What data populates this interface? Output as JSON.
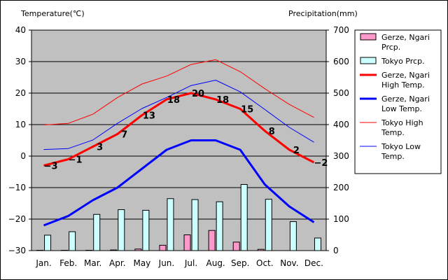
{
  "chart_data": {
    "type": "bar",
    "title": "",
    "y_left_label": "Temperature(℃)",
    "y_right_label": "Precipitation(mm)",
    "categories": [
      "Jan.",
      "Feb.",
      "Mar.",
      "Apr.",
      "May",
      "Jun.",
      "Jul.",
      "Aug.",
      "Sep.",
      "Oct.",
      "Nov.",
      "Dec."
    ],
    "y_left_lim": [
      -30,
      40
    ],
    "y_left_ticks": [
      40,
      30,
      20,
      10,
      0,
      -10,
      -20,
      -30
    ],
    "y_right_lim": [
      0,
      700
    ],
    "y_right_ticks": [
      700,
      600,
      500,
      400,
      300,
      200,
      100,
      0
    ],
    "grid": true,
    "plot_background": "#c0c0c0",
    "legend_position": "right",
    "bar_series": [
      {
        "name": "Gerze, Ngari Prcp.",
        "color": "#ff99cc",
        "values": [
          1,
          1,
          1,
          2,
          5,
          17,
          50,
          64,
          27,
          4,
          0,
          0
        ]
      },
      {
        "name": "Tokyo Prcp.",
        "color": "#ccffff",
        "values": [
          49,
          60,
          115,
          130,
          128,
          165,
          162,
          155,
          210,
          163,
          92,
          40
        ]
      }
    ],
    "line_series": [
      {
        "name": "Gerze, Ngari High Temp.",
        "color": "#ff0000",
        "width": 3,
        "values": [
          -3,
          -1,
          3,
          7,
          13,
          18,
          20,
          18,
          15,
          8,
          2,
          -2
        ],
        "labels": [
          "-3",
          "-1",
          "3",
          "7",
          "13",
          "18",
          "20",
          "18",
          "15",
          "8",
          "2",
          "-2"
        ]
      },
      {
        "name": "Gerze, Ngari Low Temp.",
        "color": "#0000ff",
        "width": 3,
        "values": [
          -22,
          -19,
          -14,
          -10,
          -4,
          2,
          5,
          5,
          2,
          -9,
          -16,
          -21
        ]
      },
      {
        "name": "Tokyo High Temp.",
        "color": "#ff0000",
        "width": 1,
        "values": [
          9.9,
          10.4,
          13.3,
          18.6,
          22.9,
          25.4,
          29.1,
          30.6,
          26.8,
          21.4,
          16.4,
          12.3
        ]
      },
      {
        "name": "Tokyo Low Temp.",
        "color": "#0000ff",
        "width": 1,
        "values": [
          2.1,
          2.4,
          5.1,
          10.4,
          15.1,
          18.6,
          22.4,
          24.1,
          20.4,
          14.8,
          9.1,
          4.4
        ]
      }
    ],
    "legend": [
      {
        "label": "Gerze, Ngari Prcp.",
        "kind": "box",
        "color": "#ff99cc"
      },
      {
        "label": "Tokyo Prcp.",
        "kind": "box",
        "color": "#ccffff"
      },
      {
        "label": "Gerze, Ngari High Temp.",
        "kind": "line",
        "color": "#ff0000",
        "width": 3
      },
      {
        "label": "Gerze, Ngari Low Temp.",
        "kind": "line",
        "color": "#0000ff",
        "width": 3
      },
      {
        "label": "Tokyo High Temp.",
        "kind": "line",
        "color": "#ff0000",
        "width": 1
      },
      {
        "label": "Tokyo Low Temp.",
        "kind": "line",
        "color": "#0000ff",
        "width": 1
      }
    ]
  }
}
